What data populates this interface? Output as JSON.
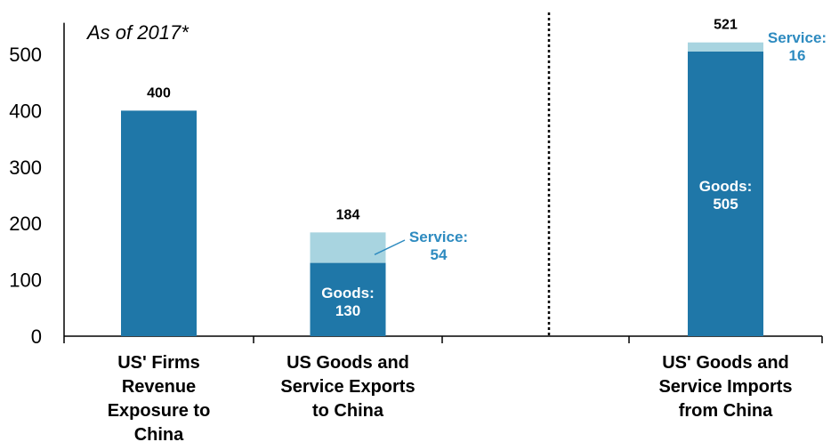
{
  "chart_data": {
    "type": "bar",
    "stacked": true,
    "note": "As of 2017*",
    "ylim": [
      0,
      540
    ],
    "yticks": [
      0,
      100,
      200,
      300,
      400,
      500
    ],
    "colors": {
      "goods": "#1f77a8",
      "service": "#a8d4e0",
      "service_text": "#2e8bc0"
    },
    "categories": [
      "US' Firms Revenue Exposure to China",
      "US Goods and Service Exports to China",
      "US' Goods and Service Imports from China"
    ],
    "category_lines": [
      [
        "US' Firms",
        "Revenue",
        "Exposure to",
        "China"
      ],
      [
        "US Goods and",
        "Service Exports",
        "to China"
      ],
      [
        "US' Goods and",
        "Service Imports",
        "from China"
      ]
    ],
    "series": [
      {
        "key": "goods",
        "values": [
          400,
          130,
          505
        ]
      },
      {
        "key": "service",
        "values": [
          0,
          54,
          16
        ]
      }
    ],
    "totals": [
      "400",
      "184",
      "521"
    ],
    "segment_labels": [
      {
        "category": 1,
        "series": "goods",
        "lines": [
          "Goods:",
          "130"
        ]
      },
      {
        "category": 1,
        "series": "service",
        "lines": [
          "Service:",
          "54"
        ]
      },
      {
        "category": 2,
        "series": "goods",
        "lines": [
          "Goods:",
          "505"
        ]
      },
      {
        "category": 2,
        "series": "service",
        "lines": [
          "Service:",
          "16"
        ]
      }
    ],
    "separator": "dotted vertical line between exports and imports",
    "legend": "none",
    "grid": false
  }
}
